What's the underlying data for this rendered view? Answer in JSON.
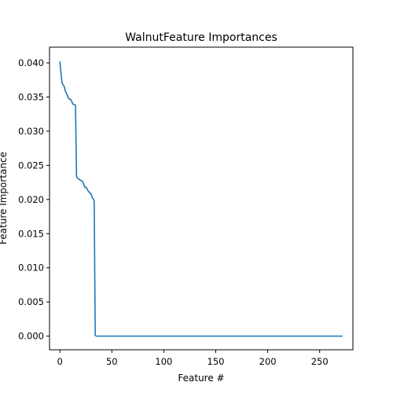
{
  "chart_data": {
    "type": "line",
    "title": "WalnutFeature Importances",
    "xlabel": "Feature #",
    "ylabel": "Feature Importance",
    "xlim": [
      -10,
      282
    ],
    "ylim": [
      -0.002,
      0.0423
    ],
    "x_ticks": [
      0,
      50,
      100,
      150,
      200,
      250
    ],
    "x_tick_labels": [
      "0",
      "50",
      "100",
      "150",
      "200",
      "250"
    ],
    "y_ticks": [
      0.0,
      0.005,
      0.01,
      0.015,
      0.02,
      0.025,
      0.03,
      0.035,
      0.04
    ],
    "y_tick_labels": [
      "0.000",
      "0.005",
      "0.010",
      "0.015",
      "0.020",
      "0.025",
      "0.030",
      "0.035",
      "0.040"
    ],
    "grid": false,
    "series": [
      {
        "color": "#1f77b4",
        "x": [
          0,
          1,
          2,
          3,
          4,
          5,
          6,
          7,
          8,
          9,
          10,
          11,
          12,
          13,
          14,
          15,
          16,
          17,
          18,
          19,
          20,
          21,
          22,
          23,
          24,
          25,
          26,
          27,
          28,
          29,
          30,
          31,
          32,
          33,
          34,
          35,
          36,
          272
        ],
        "y": [
          0.0402,
          0.0385,
          0.0371,
          0.0368,
          0.0366,
          0.036,
          0.0356,
          0.0353,
          0.0349,
          0.0347,
          0.0347,
          0.0345,
          0.0341,
          0.0339,
          0.0339,
          0.0338,
          0.0234,
          0.0231,
          0.023,
          0.0229,
          0.0228,
          0.0227,
          0.0226,
          0.0222,
          0.0218,
          0.0218,
          0.0216,
          0.0213,
          0.0211,
          0.0209,
          0.0208,
          0.0203,
          0.0201,
          0.0198,
          0.0001,
          0.0,
          0.0,
          0.0
        ]
      }
    ]
  }
}
